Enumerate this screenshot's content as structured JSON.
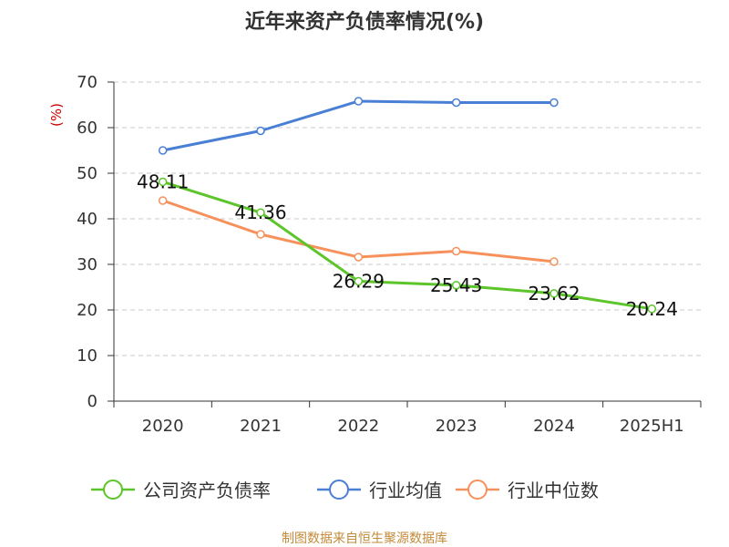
{
  "title": "近年来资产负债率情况(%)",
  "footer": "制图数据来自恒生聚源数据库",
  "chart_data": {
    "type": "line",
    "title": "近年来资产负债率情况(%)",
    "ylabel": "(%)",
    "ylim": [
      0,
      70
    ],
    "yticks": [
      0,
      10,
      20,
      30,
      40,
      50,
      60,
      70
    ],
    "grid": true,
    "legend_position": "bottom",
    "categories": [
      "2020",
      "2021",
      "2022",
      "2023",
      "2024",
      "2025H1"
    ],
    "series": [
      {
        "name": "公司资产负债率",
        "color": "#5cc52a",
        "show_labels": true,
        "values": [
          48.11,
          41.36,
          26.29,
          25.43,
          23.62,
          20.24
        ],
        "labels": [
          "48.11",
          "41.36",
          "26.29",
          "25.43",
          "23.62",
          "20.24"
        ]
      },
      {
        "name": "行业均值",
        "color": "#4a7fd6",
        "show_labels": false,
        "values": [
          55.0,
          59.3,
          65.8,
          65.5,
          65.5,
          null
        ]
      },
      {
        "name": "行业中位数",
        "color": "#f7915b",
        "show_labels": false,
        "values": [
          44.0,
          36.6,
          31.6,
          32.9,
          30.6,
          null
        ]
      }
    ]
  }
}
